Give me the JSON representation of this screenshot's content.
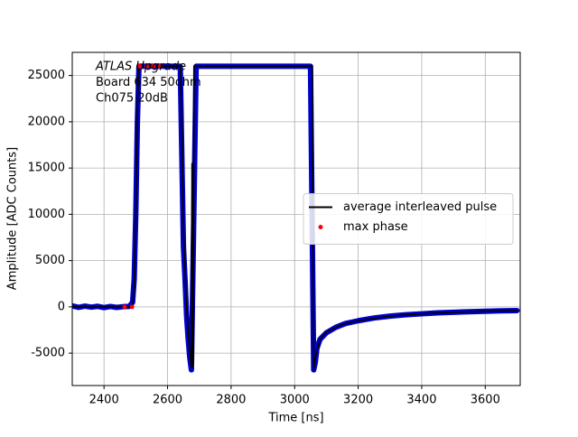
{
  "chart_data": {
    "type": "line",
    "xlabel": "Time [ns]",
    "ylabel": "Amplitude [ADC Counts]",
    "annotations": [
      "ATLAS Upgrade",
      " Board 634 50ohm",
      " Ch075 20dB"
    ],
    "xlim": [
      2300,
      3710
    ],
    "ylim": [
      -8500,
      27500
    ],
    "xticks": [
      2400,
      2600,
      2800,
      3000,
      3200,
      3400,
      3600
    ],
    "yticks": [
      -5000,
      0,
      5000,
      10000,
      15000,
      20000,
      25000
    ],
    "grid": true,
    "legend": "center right",
    "series": [
      {
        "color": "#0000cc",
        "style": "band",
        "x": [
          2300,
          2320,
          2340,
          2360,
          2380,
          2400,
          2420,
          2440,
          2460,
          2480,
          2490,
          2495,
          2500,
          2505,
          2510,
          2520,
          2540,
          2560,
          2580,
          2600,
          2620,
          2640,
          2650,
          2655,
          2660,
          2665,
          2670,
          2675,
          2690,
          2730,
          2770,
          2810,
          2850,
          2890,
          2930,
          2970,
          3010,
          3050,
          3060,
          3065,
          3070,
          3080,
          3100,
          3130,
          3160,
          3200,
          3250,
          3300,
          3350,
          3400,
          3450,
          3500,
          3550,
          3600,
          3650,
          3700
        ],
        "values": [
          100,
          -50,
          80,
          -30,
          60,
          -80,
          40,
          -60,
          20,
          50,
          500,
          3000,
          10000,
          20000,
          26000,
          26000,
          26000,
          26000,
          26000,
          26000,
          26000,
          26000,
          6500,
          3000,
          -1000,
          -3500,
          -5500,
          -6800,
          26000,
          26000,
          26000,
          26000,
          26000,
          26000,
          26000,
          26000,
          26000,
          26000,
          -6800,
          -6000,
          -4500,
          -3500,
          -2800,
          -2200,
          -1800,
          -1500,
          -1200,
          -1000,
          -850,
          -750,
          -650,
          -580,
          -520,
          -470,
          -430,
          -400
        ]
      },
      {
        "name": "average interleaved pulse",
        "color": "#000000",
        "style": "line",
        "x": [
          2300,
          2490,
          2495,
          2500,
          2505,
          2510,
          2640,
          2645,
          2650,
          2660,
          2670,
          2675,
          2677,
          2679,
          2681,
          2683,
          3055,
          3060,
          3065,
          3080,
          3100,
          3150,
          3200,
          3300,
          3400,
          3500,
          3600,
          3700
        ],
        "values": [
          0,
          0,
          2000,
          10000,
          22000,
          26000,
          26000,
          20000,
          8000,
          0,
          -5000,
          -6500,
          15500,
          -6500,
          -6000,
          26000,
          26000,
          -6800,
          -5500,
          -3500,
          -2700,
          -1900,
          -1500,
          -1000,
          -750,
          -580,
          -470,
          -400
        ]
      },
      {
        "name": "max phase",
        "color": "#ff0000",
        "style": "dots",
        "x": [
          2465,
          2488,
          2512,
          2535,
          2555,
          2575
        ],
        "values": [
          0,
          0,
          26000,
          26000,
          26000,
          26000
        ]
      }
    ]
  }
}
